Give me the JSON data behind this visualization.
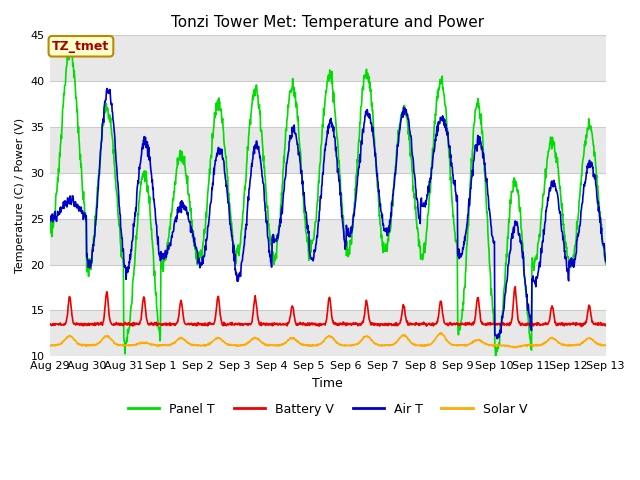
{
  "title": "Tonzi Tower Met: Temperature and Power",
  "xlabel": "Time",
  "ylabel": "Temperature (C) / Power (V)",
  "ylim": [
    10,
    45
  ],
  "annotation_text": "TZ_tmet",
  "annotation_color": "#aa0000",
  "annotation_bg": "#ffffcc",
  "annotation_border": "#bb8800",
  "bg_color": "#ffffff",
  "plot_bg": "#ffffff",
  "series": {
    "panel_t": {
      "color": "#00dd00",
      "label": "Panel T",
      "lw": 1.2
    },
    "battery_v": {
      "color": "#ee0000",
      "label": "Battery V",
      "lw": 1.2
    },
    "air_t": {
      "color": "#0000cc",
      "label": "Air T",
      "lw": 1.2
    },
    "solar_v": {
      "color": "#ffaa00",
      "label": "Solar V",
      "lw": 1.2
    }
  },
  "xtick_labels": [
    "Aug 29",
    "Aug 30",
    "Aug 31",
    "Sep 1",
    "Sep 2",
    "Sep 3",
    "Sep 4",
    "Sep 5",
    "Sep 6",
    "Sep 7",
    "Sep 8",
    "Sep 9",
    "Sep 10",
    "Sep 11",
    "Sep 12",
    "Sep 13"
  ],
  "yticks": [
    10,
    15,
    20,
    25,
    30,
    35,
    40,
    45
  ],
  "grid_color": "#dddddd",
  "band_color": "#e8e8e8"
}
